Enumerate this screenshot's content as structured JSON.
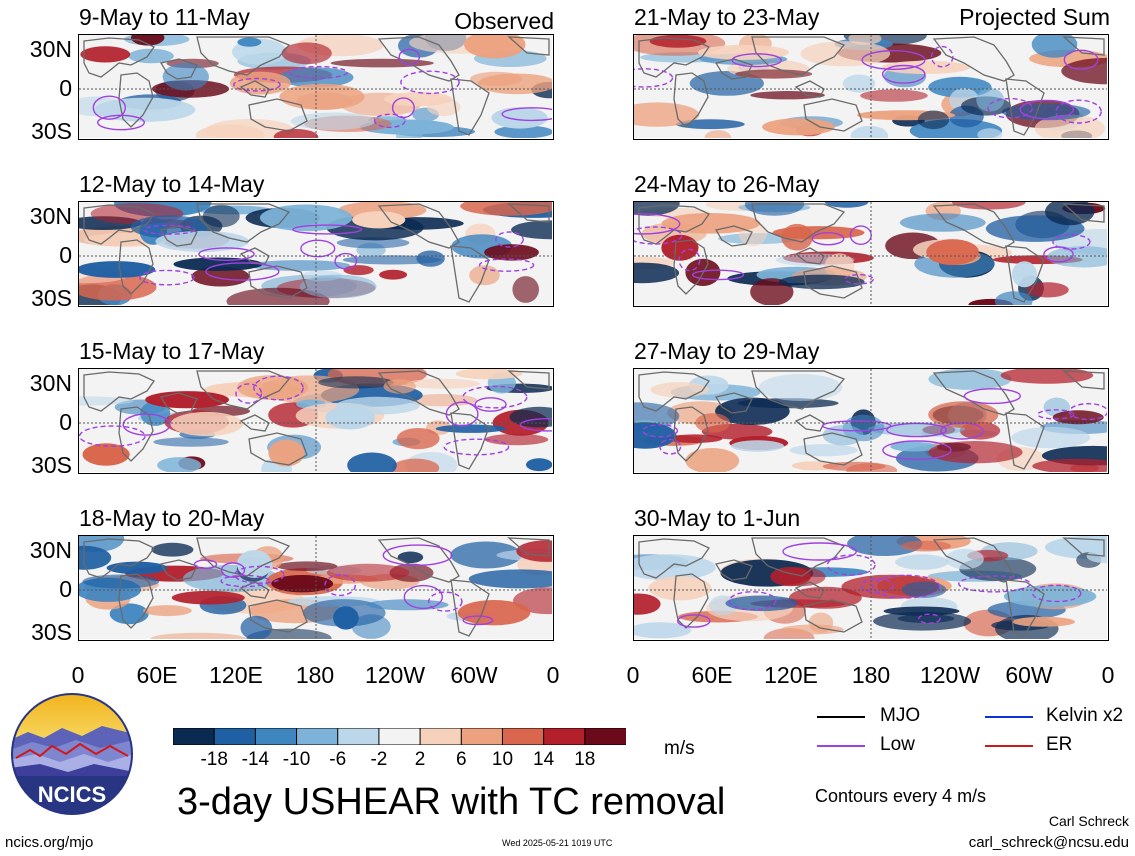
{
  "columns": {
    "left_label": "Observed",
    "right_label": "Projected Sum"
  },
  "panels": {
    "left": [
      {
        "label": "9-May to 11-May",
        "seed": 11
      },
      {
        "label": "12-May to 14-May",
        "seed": 23
      },
      {
        "label": "15-May to 17-May",
        "seed": 37
      },
      {
        "label": "18-May to 20-May",
        "seed": 41
      }
    ],
    "right": [
      {
        "label": "21-May to 23-May",
        "seed": 53
      },
      {
        "label": "24-May to 26-May",
        "seed": 67
      },
      {
        "label": "27-May to 29-May",
        "seed": 71
      },
      {
        "label": "30-May to 1-Jun",
        "seed": 89
      }
    ]
  },
  "axes": {
    "lat_ticks": [
      "30N",
      "0",
      "30S"
    ],
    "lon_ticks": [
      "0",
      "60E",
      "120E",
      "180",
      "120W",
      "60W",
      "0"
    ]
  },
  "colorbar": {
    "colors": [
      "#0b2a52",
      "#1f5fa3",
      "#3f86c1",
      "#7db3d8",
      "#bcd7ea",
      "#f3f3f3",
      "#f6d2bd",
      "#eca27f",
      "#d9664d",
      "#b3202c",
      "#6b0a1a"
    ],
    "ticks": [
      "-18",
      "-14",
      "-10",
      "-6",
      "-2",
      "2",
      "6",
      "10",
      "14",
      "18"
    ],
    "units": "m/s"
  },
  "legend": {
    "items": [
      {
        "label": "MJO",
        "color": "#000000"
      },
      {
        "label": "Kelvin x2",
        "color": "#1030d0"
      },
      {
        "label": "Low",
        "color": "#a040e0"
      },
      {
        "label": "ER",
        "color": "#d01818"
      }
    ],
    "contour_note": "Contours every 4 m/s"
  },
  "title": "3-day USHEAR with TC removal",
  "logo_text": "NCICS",
  "footer": {
    "url": "ncics.org/mjo",
    "timestamp": "Wed 2025-05-21 1019 UTC",
    "author": "Carl Schreck",
    "email": "carl_schreck@ncsu.edu"
  }
}
